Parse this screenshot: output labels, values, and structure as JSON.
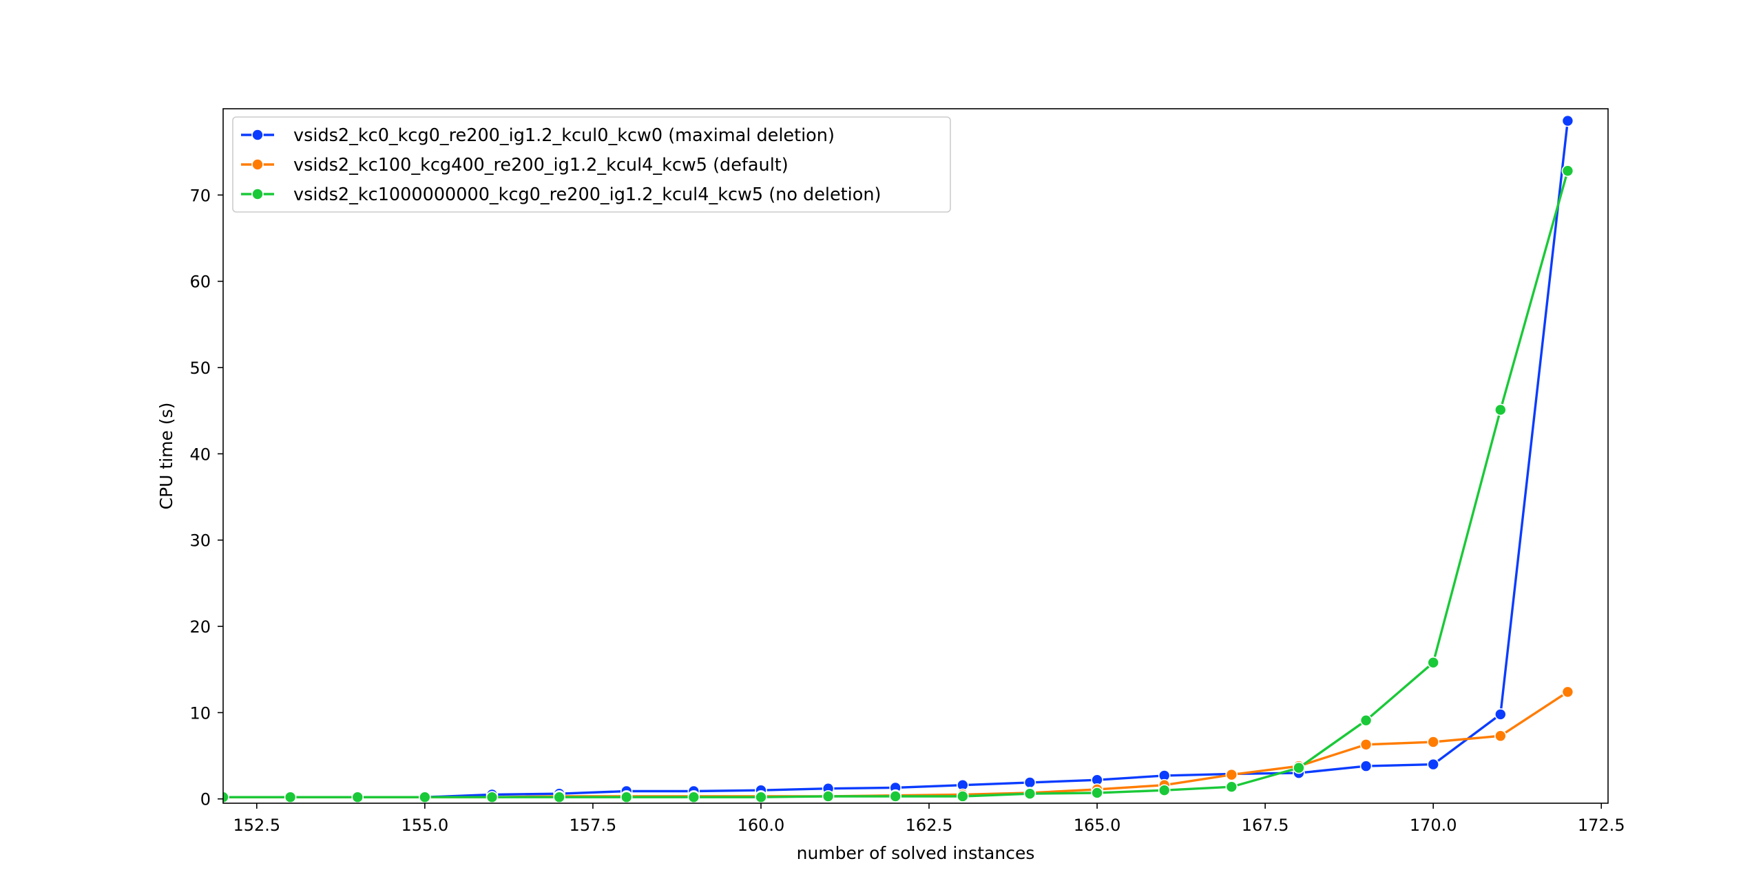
{
  "chart_data": {
    "type": "line",
    "title": "",
    "xlabel": "number of solved instances",
    "ylabel": "CPU time (s)",
    "xlim": [
      152.0,
      172.6
    ],
    "ylim": [
      -0.5,
      80.0
    ],
    "xticks": [
      152.5,
      155.0,
      157.5,
      160.0,
      162.5,
      165.0,
      167.5,
      170.0,
      172.5
    ],
    "xtick_labels": [
      "152.5",
      "155.0",
      "157.5",
      "160.0",
      "162.5",
      "165.0",
      "167.5",
      "170.0",
      "172.5"
    ],
    "yticks": [
      0,
      10,
      20,
      30,
      40,
      50,
      60,
      70
    ],
    "ytick_labels": [
      "0",
      "10",
      "20",
      "30",
      "40",
      "50",
      "60",
      "70"
    ],
    "grid": false,
    "legend_position": "top-left",
    "series": [
      {
        "name": "vsids2_kc0_kcg0_re200_ig1.2_kcul0_kcw0 (maximal deletion)",
        "color": "#0a3cff",
        "x": [
          152,
          153,
          154,
          155,
          156,
          157,
          158,
          159,
          160,
          161,
          162,
          163,
          164,
          165,
          166,
          167,
          168,
          169,
          170,
          171,
          172
        ],
        "y": [
          0.2,
          0.2,
          0.2,
          0.2,
          0.5,
          0.6,
          0.9,
          0.9,
          1.0,
          1.2,
          1.3,
          1.6,
          1.9,
          2.2,
          2.7,
          2.9,
          3.0,
          3.8,
          4.0,
          9.8,
          78.6
        ]
      },
      {
        "name": "vsids2_kc100_kcg400_re200_ig1.2_kcul4_kcw5 (default)",
        "color": "#ff7c00",
        "x": [
          152,
          153,
          154,
          155,
          156,
          157,
          158,
          159,
          160,
          161,
          162,
          163,
          164,
          165,
          166,
          167,
          168,
          169,
          170,
          171,
          172
        ],
        "y": [
          0.2,
          0.2,
          0.2,
          0.2,
          0.2,
          0.3,
          0.3,
          0.3,
          0.3,
          0.3,
          0.4,
          0.5,
          0.7,
          1.1,
          1.6,
          2.8,
          3.8,
          6.3,
          6.6,
          7.3,
          12.4
        ]
      },
      {
        "name": "vsids2_kc1000000000_kcg0_re200_ig1.2_kcul4_kcw5 (no deletion)",
        "color": "#1ac938",
        "x": [
          152,
          153,
          154,
          155,
          156,
          157,
          158,
          159,
          160,
          161,
          162,
          163,
          164,
          165,
          166,
          167,
          168,
          169,
          170,
          171,
          172
        ],
        "y": [
          0.2,
          0.2,
          0.2,
          0.2,
          0.2,
          0.2,
          0.2,
          0.2,
          0.2,
          0.3,
          0.3,
          0.3,
          0.6,
          0.7,
          1.0,
          1.4,
          3.6,
          9.1,
          15.8,
          45.1,
          72.8
        ]
      }
    ]
  }
}
